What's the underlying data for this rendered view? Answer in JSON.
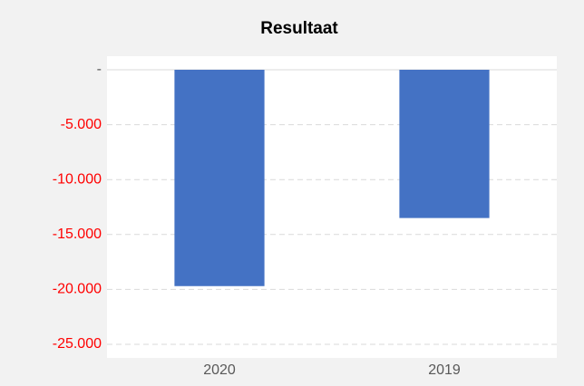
{
  "chart_data": {
    "type": "bar",
    "title": "Resultaat",
    "categories": [
      "2020",
      "2019"
    ],
    "values": [
      -19700,
      -13500
    ],
    "color": "#4472c4",
    "ylim": [
      -25000,
      0
    ],
    "yticks": [
      {
        "value": 0,
        "label": "-"
      },
      {
        "value": -5000,
        "label": "-5.000"
      },
      {
        "value": -10000,
        "label": "-10.000"
      },
      {
        "value": -15000,
        "label": "-15.000"
      },
      {
        "value": -20000,
        "label": "-20.000"
      },
      {
        "value": -25000,
        "label": "-25.000"
      }
    ],
    "grid": true,
    "negative_tick_color": "#ff0000"
  }
}
